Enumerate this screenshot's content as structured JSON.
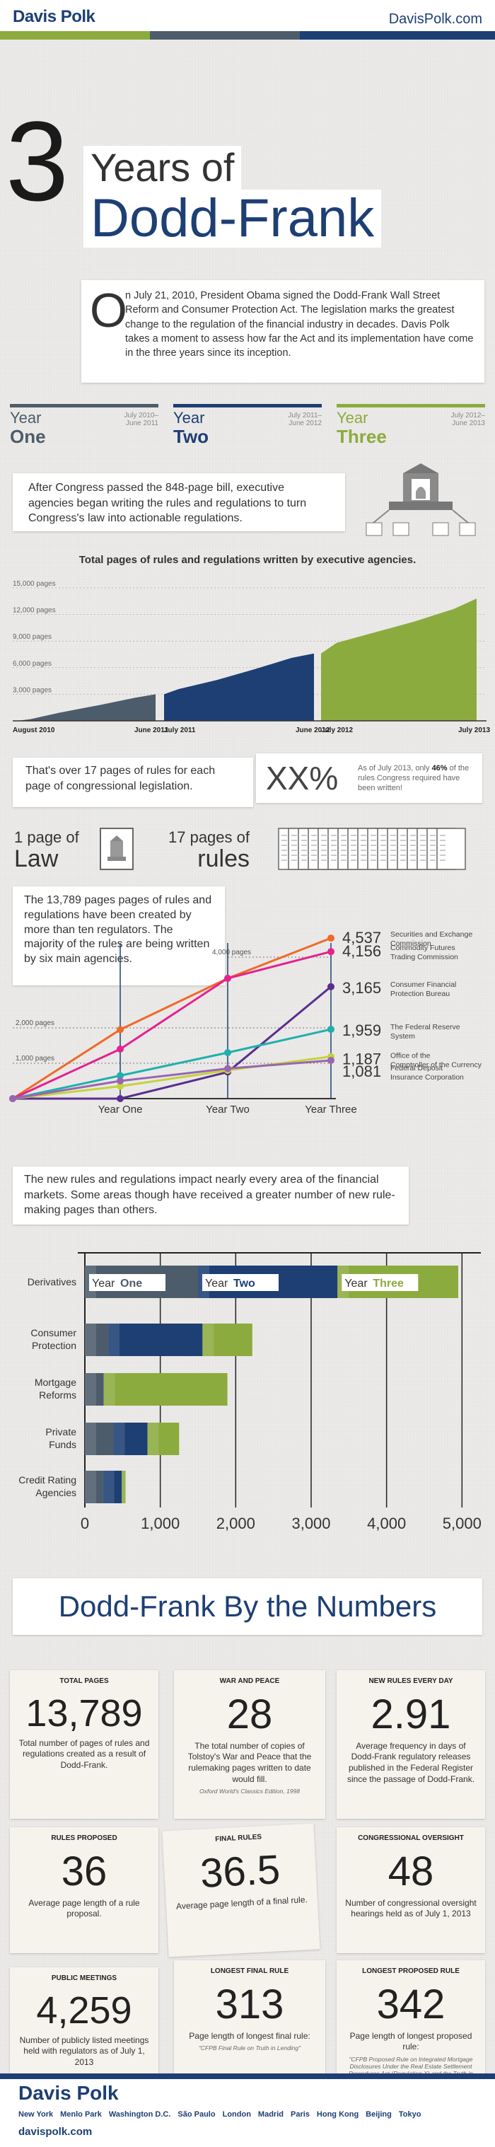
{
  "header": {
    "logo": "Davis Polk",
    "site": "DavisPolk.com",
    "stripe_colors": [
      "#8cab3e",
      "#4d5c6b",
      "#1d3f74"
    ]
  },
  "title": {
    "number": "3",
    "line1": "Years of",
    "line2": "Dodd-Frank"
  },
  "intro": {
    "dropcap": "O",
    "text": "n July 21, 2010, President Obama signed the Dodd-Frank Wall Street Reform and Consumer Protection Act. The legislation marks the greatest change to the regulation of the financial industry in decades. Davis Polk takes a moment to assess how far the Act and its implementation have come in the three years since its inception."
  },
  "years": [
    {
      "word": "Year",
      "num": "One",
      "range": "July 2010–\nJune 2011",
      "color": "#4d5c6b"
    },
    {
      "word": "Year",
      "num": "Two",
      "range": "July 2011–\nJune 2012",
      "color": "#1d3f74"
    },
    {
      "word": "Year",
      "num": "Three",
      "range": "July 2012–\nJune 2013",
      "color": "#8cab3e"
    }
  ],
  "congress_text": "After Congress passed the 848-page bill, executive agencies began writing the rules and regulations to turn Congress's law into actionable regulations.",
  "pages_text": "That's over 17 pages of rules for each page of congressional legislation.",
  "xx": {
    "big": "XX%",
    "text_a": "As of July 2013, only ",
    "pct": "46%",
    "text_b": " of the rules Congress required have been written!"
  },
  "law_rules": {
    "l_num": "1 page of",
    "l_word": "Law",
    "r_num": "17 pages of",
    "r_word": "rules"
  },
  "agency_text": "The 13,789 pages pages of rules and regulations have been created by more than ten regulators. The majority of the rules are being written by six main agencies.",
  "impact_text": "The new rules and regulations impact nearly every area of the financial markets. Some areas though have received a greater number of new rule-making pages than others.",
  "numbers_title": "Dodd-Frank By the Numbers",
  "stats": [
    {
      "label": "TOTAL PAGES",
      "value": "13,789",
      "desc": "Total number of pages of rules and regulations created as a result of Dodd-Frank.",
      "note": ""
    },
    {
      "label": "WAR AND PEACE",
      "value": "28",
      "desc": "The total number of copies of Tolstoy's War and Peace that the rulemaking pages written to date would fill.",
      "note": "Oxford World's Classics Edition, 1998"
    },
    {
      "label": "NEW RULES EVERY DAY",
      "value": "2.91",
      "desc": "Average frequency in days of Dodd-Frank regulatory releases published in the Federal Register since the passage of Dodd-Frank.",
      "note": ""
    },
    {
      "label": "RULES PROPOSED",
      "value": "36",
      "desc": "Average page length of a rule proposal.",
      "note": ""
    },
    {
      "label": "FINAL RULES",
      "value": "36.5",
      "desc": "Average page length of a final rule.",
      "note": ""
    },
    {
      "label": "CONGRESSIONAL OVERSIGHT",
      "value": "48",
      "desc": "Number of congressional oversight hearings held as of July 1, 2013",
      "note": ""
    },
    {
      "label": "PUBLIC MEETINGS",
      "value": "4,259",
      "desc": "Number of publicly listed meetings held with regulators as of July 1, 2013",
      "note": ""
    },
    {
      "label": "LONGEST FINAL RULE",
      "value": "313",
      "desc": "Page length of longest final rule:",
      "note": "\"CFPB Final Rule on Truth in Lending\""
    },
    {
      "label": "LONGEST PROPOSED RULE",
      "value": "342",
      "desc": "Page length of longest proposed rule:",
      "note": "\"CFPB Proposed Rule on Integrated Mortgage Disclosures Under the Real Estate Settlement Procedures Act (Regulation X) and the Truth in Lending Act (Regulation Z)\""
    }
  ],
  "footer": {
    "logo": "Davis Polk",
    "cities": [
      "New York",
      "Menlo Park",
      "Washington D.C.",
      "São Paulo",
      "London",
      "Madrid",
      "Paris",
      "Hong Kong",
      "Beijing",
      "Tokyo"
    ],
    "site": "davispolk.com"
  },
  "chart_data": [
    {
      "type": "area",
      "title": "Total pages of rules and regulations written by executive agencies.",
      "yticks": [
        "3,000 pages",
        "6,000 pages",
        "9,000 pages",
        "12,000 pages",
        "15,000 pages"
      ],
      "ylim": [
        0,
        15000
      ],
      "xlabels": [
        "August 2010",
        "June 2011",
        "July 2011",
        "June 2012",
        "July 2012",
        "July 2013"
      ],
      "series": [
        {
          "period": "Year One",
          "color": "#4d5c6b",
          "points": [
            [
              0,
              0
            ],
            [
              0.1,
              200
            ],
            [
              0.3,
              900
            ],
            [
              0.6,
              1800
            ],
            [
              0.85,
              2600
            ],
            [
              1,
              3000
            ]
          ]
        },
        {
          "period": "Year Two",
          "color": "#1d3f74",
          "points": [
            [
              0,
              3000
            ],
            [
              0.1,
              3600
            ],
            [
              0.35,
              4600
            ],
            [
              0.6,
              5800
            ],
            [
              0.85,
              7100
            ],
            [
              1,
              7600
            ]
          ]
        },
        {
          "period": "Year Three",
          "color": "#8cab3e",
          "points": [
            [
              0,
              7600
            ],
            [
              0.1,
              8800
            ],
            [
              0.35,
              10000
            ],
            [
              0.6,
              11200
            ],
            [
              0.85,
              12600
            ],
            [
              1,
              13789
            ]
          ]
        }
      ]
    },
    {
      "type": "line",
      "categories": [
        "",
        "Year One",
        "Year Two",
        "Year Three"
      ],
      "gridlabels": [
        "1,000 pages",
        "2,000 pages",
        "4,000 pages"
      ],
      "ylim": [
        0,
        5000
      ],
      "series": [
        {
          "name": "Securities and Exchange Commission",
          "value": "4,537",
          "color": "#ef6a2a",
          "values": [
            0,
            1950,
            3400,
            4537
          ]
        },
        {
          "name": "Commodity Futures Trading Commission",
          "value": "4,156",
          "color": "#e3238f",
          "values": [
            0,
            1400,
            3400,
            4156
          ]
        },
        {
          "name": "Consumer Financial Protection Bureau",
          "value": "3,165",
          "color": "#5a2e8e",
          "values": [
            0,
            0,
            750,
            3165
          ]
        },
        {
          "name": "The Federal Reserve System",
          "value": "1,959",
          "color": "#1fb0ad",
          "values": [
            0,
            650,
            1300,
            1959
          ]
        },
        {
          "name": "Office of the Comptroller of the Currency",
          "value": "1,187",
          "color": "#c3d33c",
          "values": [
            0,
            350,
            800,
            1187
          ]
        },
        {
          "name": "Federal Deposit Insurance Corporation",
          "value": "1,081",
          "color": "#9a65b3",
          "values": [
            0,
            500,
            850,
            1081
          ]
        }
      ]
    },
    {
      "type": "bar",
      "orientation": "horizontal-stacked",
      "categories": [
        "Derivatives",
        "Consumer Protection",
        "Mortgage Reforms",
        "Private Funds",
        "Credit Rating Agencies"
      ],
      "xticks": [
        "0",
        "1,000",
        "2,000",
        "3,000",
        "4,000",
        "5,000"
      ],
      "xlim": [
        0,
        5250
      ],
      "series": [
        {
          "name": "Year One",
          "color": "#4d5c6b",
          "values": [
            1500,
            310,
            250,
            380,
            240
          ]
        },
        {
          "name": "Year Two",
          "color": "#1d3f74",
          "values": [
            1850,
            1250,
            0,
            450,
            250
          ]
        },
        {
          "name": "Year Three",
          "color": "#8cab3e",
          "values": [
            1600,
            660,
            1640,
            420,
            50
          ]
        }
      ]
    }
  ]
}
